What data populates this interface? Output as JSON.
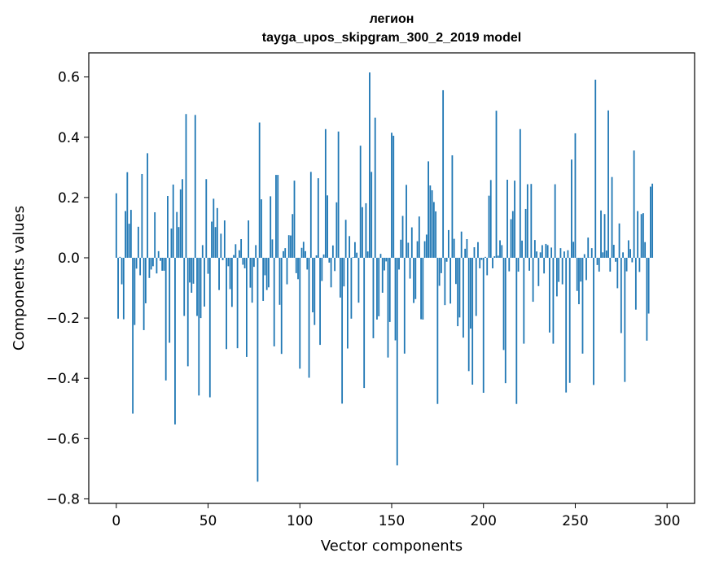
{
  "chart_data": {
    "type": "bar",
    "title_line1": "легион",
    "title_line2": "tayga_upos_skipgram_300_2_2019 model",
    "xlabel": "Vector components",
    "ylabel": "Components values",
    "xlim": [
      -15,
      315
    ],
    "ylim": [
      -0.815,
      0.68
    ],
    "xticks": [
      0,
      50,
      100,
      150,
      200,
      250,
      300
    ],
    "xtick_labels": [
      "0",
      "50",
      "100",
      "150",
      "200",
      "250",
      "300"
    ],
    "yticks": [
      0.6,
      0.4,
      0.2,
      0.0,
      -0.2,
      -0.4,
      -0.6,
      -0.8
    ],
    "ytick_labels": [
      "0.6",
      "0.4",
      "0.2",
      "0.0",
      "−0.2",
      "−0.4",
      "−0.6",
      "−0.8"
    ],
    "bar_color": "#1f77b4",
    "values": [
      0.214,
      -0.202,
      0.003,
      -0.088,
      -0.204,
      0.155,
      0.284,
      0.113,
      0.159,
      -0.517,
      -0.223,
      -0.036,
      0.103,
      -0.058,
      0.278,
      -0.24,
      -0.151,
      0.347,
      -0.067,
      -0.039,
      -0.028,
      0.151,
      -0.052,
      0.022,
      -0.01,
      -0.043,
      -0.043,
      -0.407,
      0.205,
      -0.282,
      0.097,
      0.243,
      -0.553,
      0.152,
      0.102,
      0.227,
      0.261,
      -0.193,
      0.477,
      -0.36,
      -0.082,
      -0.116,
      -0.086,
      0.474,
      -0.193,
      -0.457,
      -0.2,
      0.042,
      -0.162,
      0.261,
      -0.053,
      -0.463,
      0.12,
      0.196,
      0.102,
      0.165,
      -0.107,
      0.08,
      -0.008,
      0.124,
      -0.303,
      -0.028,
      -0.104,
      -0.163,
      0.009,
      0.045,
      -0.3,
      0.025,
      0.062,
      -0.023,
      -0.035,
      -0.329,
      0.124,
      -0.099,
      -0.149,
      -0.03,
      0.042,
      -0.743,
      0.449,
      0.194,
      -0.143,
      -0.058,
      -0.107,
      -0.098,
      0.204,
      0.061,
      -0.294,
      0.275,
      0.275,
      -0.156,
      -0.319,
      0.022,
      0.032,
      -0.088,
      0.075,
      0.074,
      0.145,
      0.256,
      -0.051,
      -0.071,
      -0.368,
      0.033,
      0.053,
      0.022,
      -0.039,
      -0.398,
      0.285,
      -0.181,
      -0.223,
      0.008,
      0.264,
      -0.289,
      -0.077,
      0.011,
      0.427,
      0.207,
      -0.016,
      -0.098,
      0.041,
      -0.044,
      0.184,
      0.419,
      -0.132,
      -0.484,
      -0.095,
      0.126,
      -0.301,
      0.072,
      -0.202,
      0.002,
      0.052,
      0.017,
      -0.149,
      0.372,
      0.168,
      -0.432,
      0.181,
      0.021,
      0.615,
      0.285,
      -0.267,
      0.465,
      -0.205,
      -0.194,
      0.013,
      -0.116,
      -0.042,
      -0.012,
      -0.331,
      -0.213,
      0.415,
      0.405,
      -0.274,
      -0.689,
      -0.039,
      0.06,
      0.139,
      -0.318,
      0.242,
      0.05,
      -0.069,
      0.101,
      -0.15,
      -0.137,
      0.055,
      0.137,
      -0.204,
      -0.205,
      0.055,
      0.077,
      0.32,
      0.24,
      0.224,
      0.185,
      0.154,
      -0.485,
      -0.093,
      -0.051,
      0.556,
      -0.157,
      -0.013,
      0.092,
      -0.152,
      0.34,
      0.063,
      -0.087,
      -0.227,
      -0.198,
      0.087,
      -0.265,
      0.03,
      0.062,
      -0.376,
      -0.235,
      -0.421,
      0.035,
      -0.193,
      0.052,
      -0.035,
      -0.007,
      -0.448,
      0.003,
      -0.058,
      0.206,
      0.258,
      -0.035,
      0.005,
      0.488,
      0.007,
      0.058,
      0.042,
      -0.306,
      -0.416,
      0.259,
      -0.045,
      0.128,
      0.155,
      0.256,
      -0.485,
      -0.046,
      0.427,
      0.057,
      -0.285,
      0.162,
      0.244,
      -0.043,
      0.245,
      -0.146,
      0.059,
      0.021,
      -0.094,
      0.018,
      0.042,
      -0.052,
      0.046,
      0.042,
      -0.248,
      0.034,
      -0.285,
      0.244,
      -0.128,
      -0.08,
      0.032,
      -0.088,
      0.021,
      -0.447,
      0.025,
      -0.415,
      0.326,
      0.053,
      0.413,
      -0.11,
      -0.154,
      -0.079,
      -0.318,
      0.012,
      -0.074,
      0.067,
      0.001,
      0.032,
      -0.422,
      0.591,
      -0.024,
      -0.046,
      0.157,
      0.018,
      0.145,
      0.024,
      0.489,
      -0.046,
      0.268,
      0.043,
      -0.013,
      -0.101,
      0.114,
      -0.25,
      0.018,
      -0.412,
      -0.045,
      0.058,
      0.029,
      -0.015,
      0.356,
      -0.172,
      0.155,
      -0.047,
      0.145,
      0.148,
      0.052,
      -0.275,
      -0.185,
      0.236,
      0.246
    ]
  }
}
